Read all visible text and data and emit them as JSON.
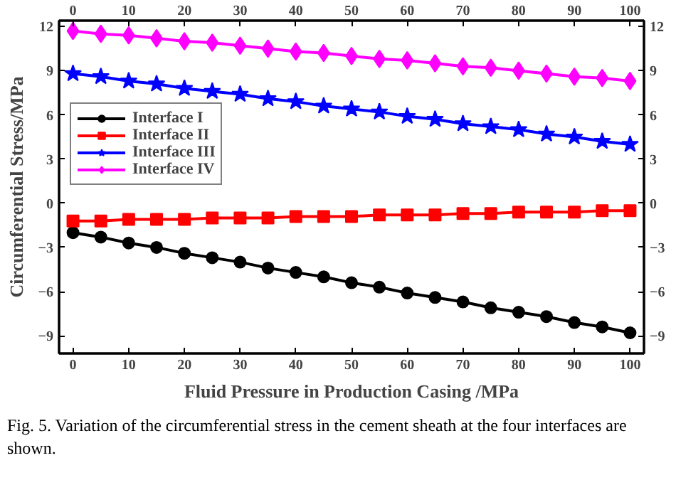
{
  "chart_data": {
    "type": "line",
    "xlabel": "Fluid Pressure in Production Casing /MPa",
    "ylabel": "Circumferential Stress/MPa",
    "annotations": [
      "Fig. 5. Variation of the circumferential stress in the cement sheath at the four interfaces are shown."
    ],
    "x": [
      0,
      5,
      10,
      15,
      20,
      25,
      30,
      35,
      40,
      45,
      50,
      55,
      60,
      65,
      70,
      75,
      80,
      85,
      90,
      95,
      100
    ],
    "series": [
      {
        "name": "Interface I",
        "color": "#000000",
        "marker": "circle",
        "values": [
          -2.0,
          -2.3,
          -2.7,
          -3.0,
          -3.4,
          -3.7,
          -4.0,
          -4.4,
          -4.7,
          -5.0,
          -5.4,
          -5.7,
          -6.1,
          -6.4,
          -6.7,
          -7.1,
          -7.4,
          -7.7,
          -8.1,
          -8.4,
          -8.8
        ]
      },
      {
        "name": "Interface II",
        "color": "#ff0000",
        "marker": "square",
        "values": [
          -1.2,
          -1.2,
          -1.1,
          -1.1,
          -1.1,
          -1.0,
          -1.0,
          -1.0,
          -0.9,
          -0.9,
          -0.9,
          -0.8,
          -0.8,
          -0.8,
          -0.7,
          -0.7,
          -0.6,
          -0.6,
          -0.6,
          -0.5,
          -0.5
        ]
      },
      {
        "name": "Interface III",
        "color": "#0000ff",
        "marker": "star",
        "values": [
          8.8,
          8.6,
          8.3,
          8.1,
          7.8,
          7.6,
          7.4,
          7.1,
          6.9,
          6.6,
          6.4,
          6.2,
          5.9,
          5.7,
          5.4,
          5.2,
          5.0,
          4.7,
          4.5,
          4.2,
          4.0
        ]
      },
      {
        "name": "Interface IV",
        "color": "#ff00ff",
        "marker": "diamond",
        "values": [
          11.7,
          11.5,
          11.4,
          11.2,
          11.0,
          10.9,
          10.7,
          10.5,
          10.3,
          10.2,
          10.0,
          9.8,
          9.7,
          9.5,
          9.3,
          9.2,
          9.0,
          8.8,
          8.6,
          8.5,
          8.3
        ]
      }
    ],
    "xlim": [
      -2.5,
      102.5
    ],
    "xticks": [
      0,
      10,
      20,
      30,
      40,
      50,
      60,
      70,
      80,
      90,
      100
    ],
    "x2lim": [
      -2.5,
      102.5
    ],
    "x2ticks": [
      0,
      10,
      20,
      30,
      40,
      50,
      60,
      70,
      80,
      90,
      100
    ],
    "ylim": [
      -10.2,
      12.4
    ],
    "yticks": [
      -9,
      -6,
      -3,
      0,
      3,
      6,
      9,
      12
    ],
    "y2lim": [
      -10.2,
      12.4
    ],
    "y2ticks": [
      -9,
      -6,
      -3,
      0,
      3,
      6,
      9,
      12
    ],
    "grid": false,
    "legend": "top left",
    "line_style": "solid"
  }
}
